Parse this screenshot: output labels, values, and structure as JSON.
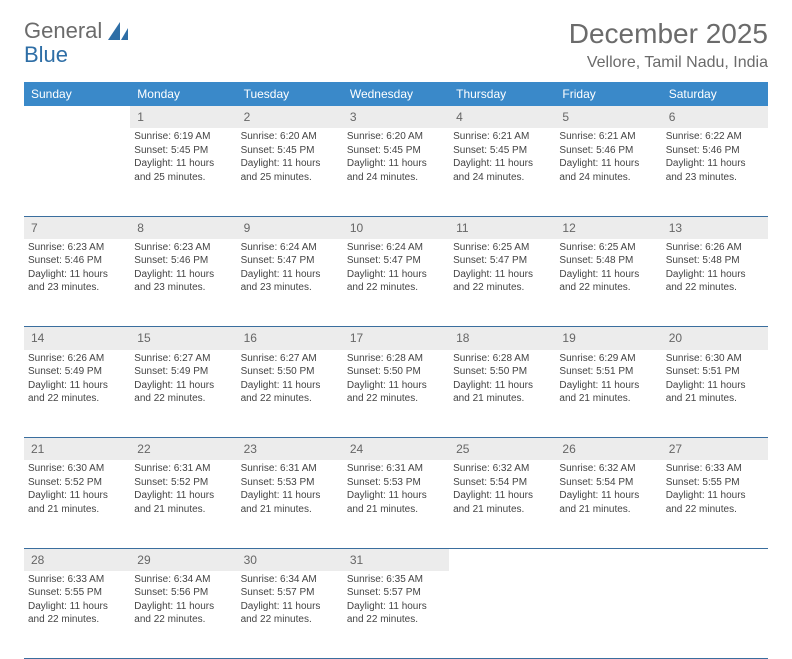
{
  "logo": {
    "text1": "General",
    "text2": "Blue"
  },
  "title": "December 2025",
  "location": "Vellore, Tamil Nadu, India",
  "colors": {
    "header_bg": "#3a89c9",
    "header_fg": "#ffffff",
    "daynum_bg": "#ececec",
    "text": "#444444",
    "rule": "#3a6e9e",
    "title_color": "#6b6b6b"
  },
  "weekdays": [
    "Sunday",
    "Monday",
    "Tuesday",
    "Wednesday",
    "Thursday",
    "Friday",
    "Saturday"
  ],
  "weeks": [
    {
      "nums": [
        "",
        "1",
        "2",
        "3",
        "4",
        "5",
        "6"
      ],
      "cells": [
        "",
        "Sunrise: 6:19 AM\nSunset: 5:45 PM\nDaylight: 11 hours and 25 minutes.",
        "Sunrise: 6:20 AM\nSunset: 5:45 PM\nDaylight: 11 hours and 25 minutes.",
        "Sunrise: 6:20 AM\nSunset: 5:45 PM\nDaylight: 11 hours and 24 minutes.",
        "Sunrise: 6:21 AM\nSunset: 5:45 PM\nDaylight: 11 hours and 24 minutes.",
        "Sunrise: 6:21 AM\nSunset: 5:46 PM\nDaylight: 11 hours and 24 minutes.",
        "Sunrise: 6:22 AM\nSunset: 5:46 PM\nDaylight: 11 hours and 23 minutes."
      ]
    },
    {
      "nums": [
        "7",
        "8",
        "9",
        "10",
        "11",
        "12",
        "13"
      ],
      "cells": [
        "Sunrise: 6:23 AM\nSunset: 5:46 PM\nDaylight: 11 hours and 23 minutes.",
        "Sunrise: 6:23 AM\nSunset: 5:46 PM\nDaylight: 11 hours and 23 minutes.",
        "Sunrise: 6:24 AM\nSunset: 5:47 PM\nDaylight: 11 hours and 23 minutes.",
        "Sunrise: 6:24 AM\nSunset: 5:47 PM\nDaylight: 11 hours and 22 minutes.",
        "Sunrise: 6:25 AM\nSunset: 5:47 PM\nDaylight: 11 hours and 22 minutes.",
        "Sunrise: 6:25 AM\nSunset: 5:48 PM\nDaylight: 11 hours and 22 minutes.",
        "Sunrise: 6:26 AM\nSunset: 5:48 PM\nDaylight: 11 hours and 22 minutes."
      ]
    },
    {
      "nums": [
        "14",
        "15",
        "16",
        "17",
        "18",
        "19",
        "20"
      ],
      "cells": [
        "Sunrise: 6:26 AM\nSunset: 5:49 PM\nDaylight: 11 hours and 22 minutes.",
        "Sunrise: 6:27 AM\nSunset: 5:49 PM\nDaylight: 11 hours and 22 minutes.",
        "Sunrise: 6:27 AM\nSunset: 5:50 PM\nDaylight: 11 hours and 22 minutes.",
        "Sunrise: 6:28 AM\nSunset: 5:50 PM\nDaylight: 11 hours and 22 minutes.",
        "Sunrise: 6:28 AM\nSunset: 5:50 PM\nDaylight: 11 hours and 21 minutes.",
        "Sunrise: 6:29 AM\nSunset: 5:51 PM\nDaylight: 11 hours and 21 minutes.",
        "Sunrise: 6:30 AM\nSunset: 5:51 PM\nDaylight: 11 hours and 21 minutes."
      ]
    },
    {
      "nums": [
        "21",
        "22",
        "23",
        "24",
        "25",
        "26",
        "27"
      ],
      "cells": [
        "Sunrise: 6:30 AM\nSunset: 5:52 PM\nDaylight: 11 hours and 21 minutes.",
        "Sunrise: 6:31 AM\nSunset: 5:52 PM\nDaylight: 11 hours and 21 minutes.",
        "Sunrise: 6:31 AM\nSunset: 5:53 PM\nDaylight: 11 hours and 21 minutes.",
        "Sunrise: 6:31 AM\nSunset: 5:53 PM\nDaylight: 11 hours and 21 minutes.",
        "Sunrise: 6:32 AM\nSunset: 5:54 PM\nDaylight: 11 hours and 21 minutes.",
        "Sunrise: 6:32 AM\nSunset: 5:54 PM\nDaylight: 11 hours and 21 minutes.",
        "Sunrise: 6:33 AM\nSunset: 5:55 PM\nDaylight: 11 hours and 22 minutes."
      ]
    },
    {
      "nums": [
        "28",
        "29",
        "30",
        "31",
        "",
        "",
        ""
      ],
      "cells": [
        "Sunrise: 6:33 AM\nSunset: 5:55 PM\nDaylight: 11 hours and 22 minutes.",
        "Sunrise: 6:34 AM\nSunset: 5:56 PM\nDaylight: 11 hours and 22 minutes.",
        "Sunrise: 6:34 AM\nSunset: 5:57 PM\nDaylight: 11 hours and 22 minutes.",
        "Sunrise: 6:35 AM\nSunset: 5:57 PM\nDaylight: 11 hours and 22 minutes.",
        "",
        "",
        ""
      ]
    }
  ]
}
